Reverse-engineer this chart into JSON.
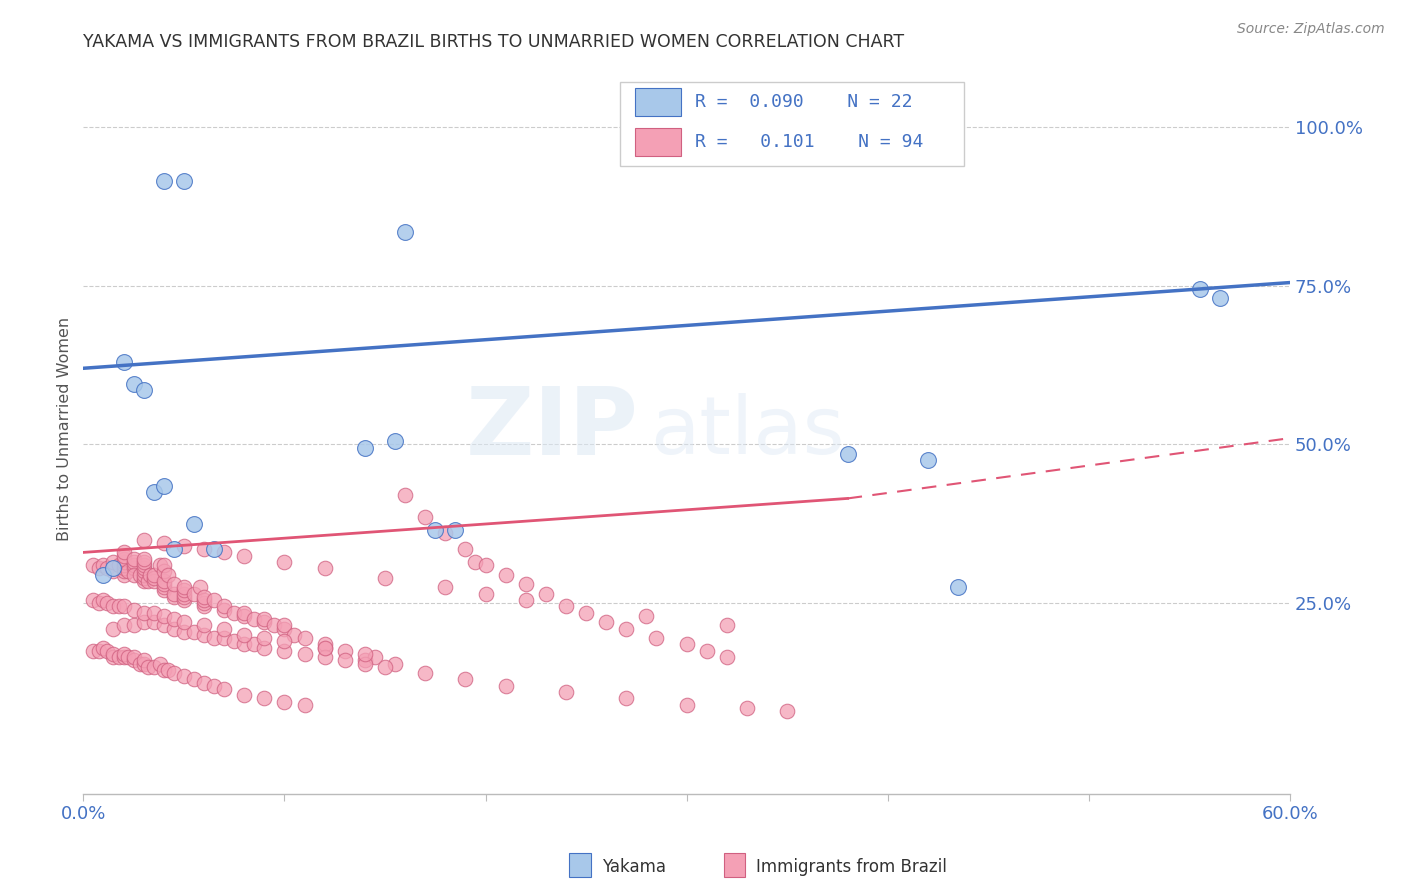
{
  "title": "YAKAMA VS IMMIGRANTS FROM BRAZIL BIRTHS TO UNMARRIED WOMEN CORRELATION CHART",
  "source": "Source: ZipAtlas.com",
  "ylabel": "Births to Unmarried Women",
  "ylabel_right_ticks": [
    "100.0%",
    "75.0%",
    "50.0%",
    "25.0%"
  ],
  "ylabel_right_values": [
    1.0,
    0.75,
    0.5,
    0.25
  ],
  "xlim": [
    0.0,
    0.6
  ],
  "ylim": [
    -0.05,
    1.1
  ],
  "color_yakama": "#a8c8ea",
  "color_brazil": "#f4a0b5",
  "color_trend_yakama": "#4472c4",
  "color_trend_brazil": "#e05575",
  "watermark_zip": "ZIP",
  "watermark_atlas": "atlas",
  "title_color": "#333333",
  "axis_color": "#4472c4",
  "trend_yakama_x0": 0.0,
  "trend_yakama_y0": 0.62,
  "trend_yakama_x1": 0.6,
  "trend_yakama_y1": 0.755,
  "trend_brazil_solid_x0": 0.0,
  "trend_brazil_solid_y0": 0.33,
  "trend_brazil_solid_x1": 0.38,
  "trend_brazil_solid_y1": 0.415,
  "trend_brazil_dash_x0": 0.38,
  "trend_brazil_dash_y0": 0.415,
  "trend_brazil_dash_x1": 0.6,
  "trend_brazil_dash_y1": 0.51,
  "yakama_x": [
    0.04,
    0.05,
    0.16,
    0.02,
    0.025,
    0.03,
    0.035,
    0.04,
    0.045,
    0.055,
    0.065,
    0.14,
    0.155,
    0.175,
    0.185,
    0.38,
    0.42,
    0.435,
    0.01,
    0.015,
    0.555,
    0.565
  ],
  "yakama_y": [
    0.915,
    0.915,
    0.835,
    0.63,
    0.595,
    0.585,
    0.425,
    0.435,
    0.335,
    0.375,
    0.335,
    0.495,
    0.505,
    0.365,
    0.365,
    0.485,
    0.475,
    0.275,
    0.295,
    0.305,
    0.745,
    0.73
  ],
  "brazil_x": [
    0.005,
    0.008,
    0.01,
    0.012,
    0.015,
    0.015,
    0.018,
    0.02,
    0.02,
    0.02,
    0.02,
    0.02,
    0.02,
    0.02,
    0.02,
    0.022,
    0.025,
    0.025,
    0.025,
    0.025,
    0.025,
    0.028,
    0.03,
    0.03,
    0.03,
    0.03,
    0.03,
    0.03,
    0.03,
    0.03,
    0.032,
    0.033,
    0.035,
    0.035,
    0.035,
    0.038,
    0.04,
    0.04,
    0.04,
    0.04,
    0.04,
    0.04,
    0.042,
    0.045,
    0.045,
    0.045,
    0.05,
    0.05,
    0.05,
    0.05,
    0.05,
    0.055,
    0.058,
    0.06,
    0.06,
    0.06,
    0.06,
    0.065,
    0.07,
    0.07,
    0.075,
    0.08,
    0.08,
    0.085,
    0.09,
    0.09,
    0.095,
    0.1,
    0.1,
    0.105,
    0.11,
    0.12,
    0.12,
    0.13,
    0.14,
    0.145,
    0.155,
    0.16,
    0.17,
    0.18,
    0.19,
    0.195,
    0.2,
    0.21,
    0.22,
    0.23,
    0.24,
    0.25,
    0.26,
    0.27,
    0.285,
    0.3,
    0.31,
    0.32
  ],
  "brazil_y": [
    0.31,
    0.305,
    0.31,
    0.305,
    0.3,
    0.315,
    0.31,
    0.295,
    0.3,
    0.305,
    0.31,
    0.315,
    0.32,
    0.325,
    0.33,
    0.3,
    0.305,
    0.31,
    0.315,
    0.32,
    0.295,
    0.295,
    0.285,
    0.29,
    0.295,
    0.3,
    0.305,
    0.31,
    0.315,
    0.32,
    0.285,
    0.295,
    0.285,
    0.29,
    0.295,
    0.31,
    0.27,
    0.275,
    0.28,
    0.285,
    0.3,
    0.31,
    0.295,
    0.26,
    0.265,
    0.28,
    0.255,
    0.26,
    0.265,
    0.27,
    0.275,
    0.265,
    0.275,
    0.245,
    0.25,
    0.255,
    0.26,
    0.255,
    0.24,
    0.245,
    0.235,
    0.23,
    0.235,
    0.225,
    0.22,
    0.225,
    0.215,
    0.21,
    0.215,
    0.2,
    0.195,
    0.18,
    0.185,
    0.175,
    0.16,
    0.165,
    0.155,
    0.42,
    0.385,
    0.36,
    0.335,
    0.315,
    0.31,
    0.295,
    0.28,
    0.265,
    0.245,
    0.235,
    0.22,
    0.21,
    0.195,
    0.185,
    0.175,
    0.165
  ]
}
